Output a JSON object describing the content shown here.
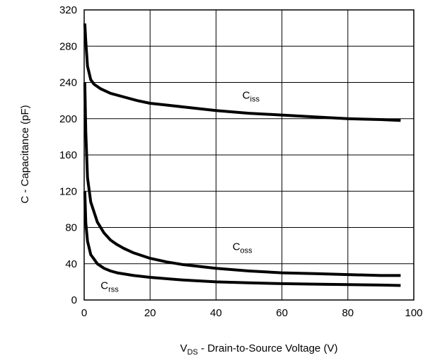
{
  "chart_data": {
    "type": "line",
    "title": "",
    "xlabel": {
      "main": "V",
      "sub": "DS",
      "rest": " - Drain-to-Source Voltage (V)"
    },
    "ylabel": "C - Capacitance (pF)",
    "xlim": [
      0,
      100
    ],
    "ylim": [
      0,
      320
    ],
    "xticks": [
      0,
      20,
      40,
      60,
      80,
      100
    ],
    "yticks": [
      0,
      40,
      80,
      120,
      160,
      200,
      240,
      280,
      320
    ],
    "grid": true,
    "legend": "none",
    "line_color": "#000000",
    "series": [
      {
        "name": {
          "main": "C",
          "sub": "iss"
        },
        "label_at": [
          48,
          222
        ],
        "x": [
          0.2,
          0.5,
          1,
          2,
          3,
          5,
          8,
          12,
          16,
          20,
          25,
          30,
          40,
          50,
          60,
          70,
          80,
          90,
          96
        ],
        "y": [
          305,
          285,
          258,
          243,
          238,
          233,
          228,
          224,
          220,
          217,
          215,
          213,
          209,
          206,
          204,
          202,
          200,
          199,
          198
        ]
      },
      {
        "name": {
          "main": "C",
          "sub": "oss"
        },
        "label_at": [
          45,
          55
        ],
        "x": [
          0.2,
          0.5,
          1,
          2,
          3,
          4,
          6,
          8,
          10,
          12,
          15,
          20,
          25,
          30,
          40,
          50,
          60,
          70,
          80,
          90,
          96
        ],
        "y": [
          240,
          185,
          135,
          108,
          97,
          86,
          74,
          66,
          61,
          57,
          52,
          46,
          42,
          39,
          35,
          32,
          30,
          29,
          28,
          27,
          27
        ]
      },
      {
        "name": {
          "main": "C",
          "sub": "rss"
        },
        "label_at": [
          5,
          12
        ],
        "x": [
          0.2,
          0.5,
          1,
          2,
          3,
          4,
          6,
          8,
          10,
          15,
          20,
          30,
          40,
          50,
          60,
          70,
          80,
          90,
          96
        ],
        "y": [
          120,
          85,
          65,
          50,
          45,
          40,
          35,
          32,
          30,
          27,
          25,
          22,
          20,
          19,
          18,
          17.5,
          17,
          16.5,
          16
        ]
      }
    ]
  }
}
